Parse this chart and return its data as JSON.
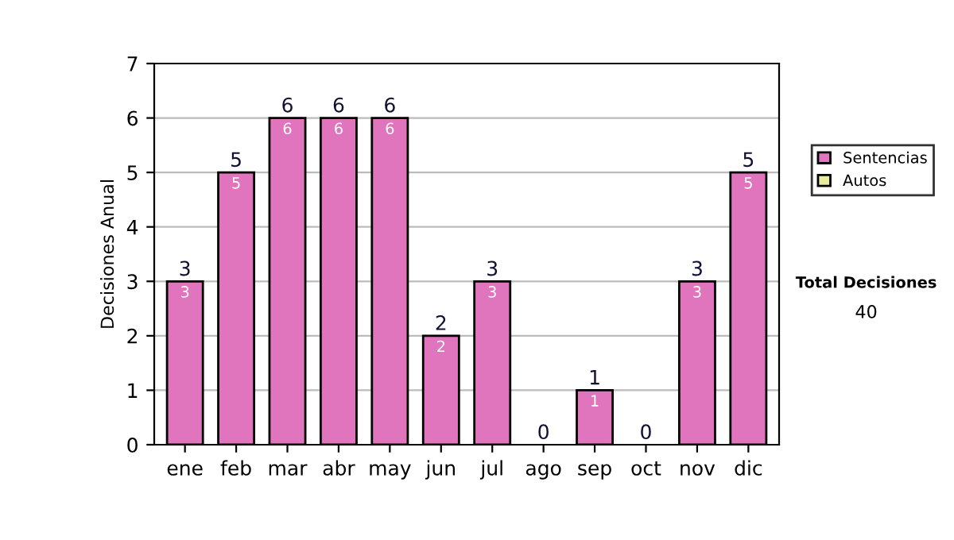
{
  "chart_data": {
    "type": "bar",
    "stacked": true,
    "ylabel": "Decisiones Anual",
    "categories": [
      "ene",
      "feb",
      "mar",
      "abr",
      "may",
      "jun",
      "jul",
      "ago",
      "sep",
      "oct",
      "nov",
      "dic"
    ],
    "series": [
      {
        "name": "Sentencias",
        "color": "#e075be",
        "values": [
          3,
          5,
          6,
          6,
          6,
          2,
          3,
          0,
          1,
          0,
          3,
          5
        ],
        "value_labels": [
          "3",
          "5",
          "6",
          "6",
          "6",
          "2",
          "3",
          null,
          "1",
          null,
          "3",
          "5"
        ]
      },
      {
        "name": "Autos",
        "color": "#e8ec9c",
        "values": [
          0,
          0,
          0,
          0,
          0,
          0,
          0,
          0,
          0,
          0,
          0,
          0
        ]
      }
    ],
    "totals": [
      "3",
      "5",
      "6",
      "6",
      "6",
      "2",
      "3",
      "0",
      "1",
      "0",
      "3",
      "5"
    ],
    "ylim": [
      0,
      7
    ],
    "yticks": [
      0,
      1,
      2,
      3,
      4,
      5,
      6,
      7
    ],
    "grid": "y",
    "legend": "right",
    "annotations": [
      "Total Decisiones",
      "40"
    ]
  }
}
